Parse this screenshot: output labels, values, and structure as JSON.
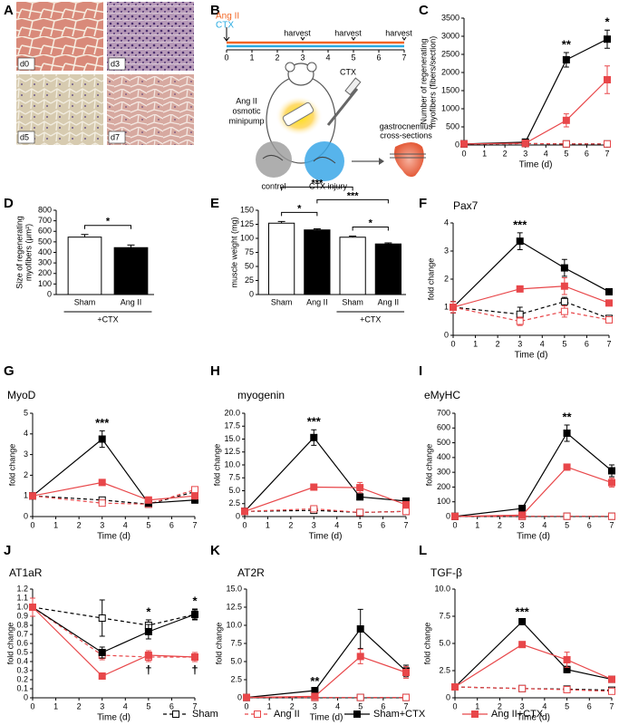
{
  "panel_a": {
    "label": "A",
    "images": [
      "d0",
      "d3",
      "d5",
      "d7"
    ]
  },
  "panel_b": {
    "label": "B",
    "lines": [
      {
        "name": "Ang II",
        "color": "#f26522"
      },
      {
        "name": "CTX",
        "color": "#29abe2"
      }
    ],
    "timeline": [
      0,
      1,
      2,
      3,
      4,
      5,
      6,
      7
    ],
    "harvest_days": [
      3,
      5,
      7
    ],
    "harvest_label": "harvest",
    "pump_label": [
      "Ang II",
      "osmotic",
      "minipump"
    ],
    "injection_label": "CTX",
    "muscle_label": [
      "gastrocnemius",
      "cross-sections"
    ],
    "control_label": "control",
    "injury_label": "CTX injury"
  },
  "series_styles": [
    {
      "name": "Sham",
      "color": "#000000",
      "dashed": true,
      "filled": false
    },
    {
      "name": "Ang II",
      "color": "#e8474a",
      "dashed": true,
      "filled": false
    },
    {
      "name": "Sham+CTX",
      "color": "#000000",
      "dashed": false,
      "filled": true
    },
    {
      "name": "Ang II+CTX",
      "color": "#e8474a",
      "dashed": false,
      "filled": true
    }
  ],
  "chart_data": [
    {
      "type": "line",
      "panel": "C",
      "ylabel": [
        "Number of regenerating",
        "myofibers (fibers/section)"
      ],
      "xlabel": "Time (d)",
      "x": [
        0,
        3,
        5,
        7
      ],
      "xlim": [
        0,
        7
      ],
      "xticks": [
        0,
        1,
        2,
        3,
        4,
        5,
        6,
        7
      ],
      "ylim": [
        0,
        3500
      ],
      "yticks": [
        0,
        500,
        1000,
        1500,
        2000,
        2500,
        3000,
        3500
      ],
      "series": [
        {
          "values": [
            30,
            40,
            30,
            30
          ],
          "errors": [
            0,
            10,
            10,
            10
          ]
        },
        {
          "values": [
            30,
            40,
            30,
            30
          ],
          "errors": [
            0,
            10,
            10,
            10
          ]
        },
        {
          "values": [
            30,
            80,
            2350,
            2920
          ],
          "errors": [
            0,
            20,
            200,
            250
          ]
        },
        {
          "values": [
            30,
            50,
            680,
            1800
          ],
          "errors": [
            0,
            20,
            180,
            380
          ]
        }
      ],
      "annotations": [
        {
          "text": "**",
          "x": 5,
          "side": "above"
        },
        {
          "text": "*",
          "x": 7,
          "side": "above"
        }
      ]
    },
    {
      "type": "bar",
      "panel": "D",
      "ylabel": [
        "Size of regenerating",
        "myofibers (μm²)"
      ],
      "categories": [
        "Sham",
        "Ang II"
      ],
      "values": [
        545,
        445
      ],
      "errors": [
        25,
        25
      ],
      "bar_colors": [
        "#ffffff",
        "#000000"
      ],
      "ylim": [
        0,
        800
      ],
      "yticks": [
        0,
        100,
        200,
        300,
        400,
        500,
        600,
        700,
        800
      ],
      "group": {
        "label": "+CTX",
        "from": 0,
        "to": 1
      },
      "comparisons": [
        {
          "a": 0,
          "b": 1,
          "text": "*"
        }
      ]
    },
    {
      "type": "bar",
      "panel": "E",
      "ylabel": [
        "muscle weight (mg)"
      ],
      "categories": [
        "Sham",
        "Ang II",
        "Sham",
        "Ang II"
      ],
      "values": [
        127,
        115,
        102,
        90
      ],
      "errors": [
        3,
        2,
        2,
        2
      ],
      "bar_colors": [
        "#ffffff",
        "#000000",
        "#ffffff",
        "#000000"
      ],
      "ylim": [
        0,
        150
      ],
      "yticks": [
        0,
        25,
        50,
        75,
        100,
        125,
        150
      ],
      "group": {
        "label": "+CTX",
        "from": 2,
        "to": 3
      },
      "comparisons": [
        {
          "a": 0,
          "b": 1,
          "text": "*"
        },
        {
          "a": 2,
          "b": 3,
          "text": "*"
        },
        {
          "a": 1,
          "b": 3,
          "text": "***"
        },
        {
          "a": 0,
          "b": 2,
          "text": "***"
        }
      ]
    },
    {
      "type": "line",
      "panel": "F",
      "title": "Pax7",
      "ylabel": [
        "fold change"
      ],
      "xlabel": "Time (d)",
      "x": [
        0,
        3,
        5,
        7
      ],
      "xlim": [
        0,
        7
      ],
      "xticks": [
        0,
        1,
        2,
        3,
        4,
        5,
        6,
        7
      ],
      "ylim": [
        0,
        4
      ],
      "yticks": [
        0,
        1,
        2,
        3,
        4
      ],
      "series": [
        {
          "values": [
            1,
            0.75,
            1.2,
            0.6
          ],
          "errors": [
            0.2,
            0.25,
            0.15,
            0.1
          ]
        },
        {
          "values": [
            1,
            0.5,
            0.85,
            0.55
          ],
          "errors": [
            0.2,
            0.15,
            0.2,
            0.1
          ]
        },
        {
          "values": [
            1,
            3.35,
            2.4,
            1.55
          ],
          "errors": [
            0.2,
            0.3,
            0.3,
            0.1
          ]
        },
        {
          "values": [
            1,
            1.65,
            1.75,
            1.15
          ],
          "errors": [
            0.2,
            0.1,
            0.3,
            0.05
          ]
        }
      ],
      "annotations": [
        {
          "text": "***",
          "x": 3,
          "side": "above"
        }
      ]
    },
    {
      "type": "line",
      "panel": "G",
      "title": "MyoD",
      "ylabel": [
        "fold change"
      ],
      "xlabel": "Time (d)",
      "x": [
        0,
        3,
        5,
        7
      ],
      "xlim": [
        0,
        7
      ],
      "xticks": [
        0,
        1,
        2,
        3,
        4,
        5,
        6,
        7
      ],
      "ylim": [
        0,
        5
      ],
      "yticks": [
        0,
        1,
        2,
        3,
        4,
        5
      ],
      "series": [
        {
          "values": [
            1,
            0.8,
            0.6,
            1.2
          ],
          "errors": [
            0.05,
            0.1,
            0.1,
            0.15
          ]
        },
        {
          "values": [
            1,
            0.65,
            0.6,
            1.3
          ],
          "errors": [
            0.05,
            0.1,
            0.1,
            0.15
          ]
        },
        {
          "values": [
            1,
            3.75,
            0.65,
            0.8
          ],
          "errors": [
            0.05,
            0.4,
            0.1,
            0.15
          ]
        },
        {
          "values": [
            1,
            1.65,
            0.8,
            1.0
          ],
          "errors": [
            0.05,
            0.1,
            0.15,
            0.15
          ]
        }
      ],
      "annotations": [
        {
          "text": "***",
          "x": 3,
          "side": "above"
        }
      ]
    },
    {
      "type": "line",
      "panel": "H",
      "title": "myogenin",
      "ylabel": [
        "fold change"
      ],
      "xlabel": "Time (d)",
      "x": [
        0,
        3,
        5,
        7
      ],
      "xlim": [
        0,
        7
      ],
      "xticks": [
        0,
        1,
        2,
        3,
        4,
        5,
        6,
        7
      ],
      "ylim": [
        0,
        20
      ],
      "yticks": [
        0,
        2.5,
        {
          "value": 5,
          "label": "5.0"
        },
        7.5,
        {
          "value": 10,
          "label": "10.0"
        },
        12.5,
        {
          "value": 15,
          "label": "15.0"
        },
        17.5,
        {
          "value": 20,
          "label": "20.0"
        }
      ],
      "series": [
        {
          "values": [
            1,
            1.2,
            0.8,
            1.0
          ],
          "errors": [
            0.1,
            0.3,
            0.2,
            0.2
          ]
        },
        {
          "values": [
            1,
            1.5,
            0.8,
            1.0
          ],
          "errors": [
            0.1,
            0.3,
            0.2,
            0.2
          ]
        },
        {
          "values": [
            1,
            15.3,
            3.8,
            3.0
          ],
          "errors": [
            0.1,
            1.5,
            0.5,
            0.4
          ]
        },
        {
          "values": [
            1,
            5.7,
            5.6,
            2.3
          ],
          "errors": [
            0.1,
            0.3,
            1.0,
            0.4
          ]
        }
      ],
      "annotations": [
        {
          "text": "***",
          "x": 3,
          "side": "above"
        }
      ]
    },
    {
      "type": "line",
      "panel": "I",
      "title": "eMyHC",
      "ylabel": [
        "fold change"
      ],
      "xlabel": "Time (d)",
      "x": [
        0,
        3,
        5,
        7
      ],
      "xlim": [
        0,
        7
      ],
      "xticks": [
        0,
        1,
        2,
        3,
        4,
        5,
        6,
        7
      ],
      "ylim": [
        0,
        700
      ],
      "yticks": [
        0,
        100,
        200,
        300,
        400,
        500,
        600,
        700
      ],
      "series": [
        {
          "values": [
            1,
            2,
            2,
            2
          ],
          "errors": [
            0,
            1,
            1,
            1
          ]
        },
        {
          "values": [
            1,
            2,
            2,
            2
          ],
          "errors": [
            0,
            1,
            1,
            1
          ]
        },
        {
          "values": [
            1,
            55,
            565,
            310
          ],
          "errors": [
            0,
            10,
            55,
            40
          ]
        },
        {
          "values": [
            1,
            10,
            335,
            230
          ],
          "errors": [
            0,
            5,
            15,
            30
          ]
        }
      ],
      "annotations": [
        {
          "text": "**",
          "x": 5,
          "side": "above"
        }
      ]
    },
    {
      "type": "line",
      "panel": "J",
      "title": "AT1aR",
      "ylabel": [
        "fold change"
      ],
      "xlabel": "Time (d)",
      "x": [
        0,
        3,
        5,
        7
      ],
      "xlim": [
        0,
        7
      ],
      "xticks": [
        0,
        1,
        2,
        3,
        4,
        5,
        6,
        7
      ],
      "ylim": [
        0,
        1.2
      ],
      "yticks": [
        0,
        0.1,
        0.2,
        0.3,
        0.4,
        0.5,
        0.6,
        0.7,
        0.8,
        0.9,
        {
          "value": 1,
          "label": "1.0"
        },
        1.1,
        1.2
      ],
      "series": [
        {
          "values": [
            1,
            0.88,
            0.8,
            0.92
          ],
          "errors": [
            0.1,
            0.2,
            0.06,
            0.05
          ]
        },
        {
          "values": [
            1,
            0.47,
            0.45,
            0.45
          ],
          "errors": [
            0.1,
            0.05,
            0.05,
            0.05
          ]
        },
        {
          "values": [
            1,
            0.5,
            0.73,
            0.92
          ],
          "errors": [
            0.1,
            0.06,
            0.08,
            0.06
          ]
        },
        {
          "values": [
            1,
            0.24,
            0.47,
            0.45
          ],
          "errors": [
            0.1,
            0.03,
            0.05,
            0.05
          ]
        }
      ],
      "annotations": [
        {
          "text": "*",
          "x": 5,
          "side": "above"
        },
        {
          "text": "*",
          "x": 7,
          "side": "above"
        },
        {
          "text": "†",
          "x": 5,
          "side": "below"
        },
        {
          "text": "†",
          "x": 7,
          "side": "below"
        }
      ]
    },
    {
      "type": "line",
      "panel": "K",
      "title": "AT2R",
      "ylabel": [
        "fold change"
      ],
      "xlabel": "Time (d)",
      "x": [
        0,
        3,
        5,
        7
      ],
      "xlim": [
        0,
        7
      ],
      "xticks": [
        0,
        1,
        2,
        3,
        4,
        5,
        6,
        7
      ],
      "ylim": [
        0,
        15
      ],
      "yticks": [
        0,
        2.5,
        {
          "value": 5,
          "label": "5.0"
        },
        7.5,
        {
          "value": 10,
          "label": "10.0"
        },
        12.5,
        {
          "value": 15,
          "label": "15.0"
        }
      ],
      "series": [
        {
          "values": [
            0.05,
            0.05,
            0.05,
            0.05
          ],
          "errors": [
            0,
            0,
            0,
            0
          ]
        },
        {
          "values": [
            0.05,
            0.05,
            0.05,
            0.05
          ],
          "errors": [
            0,
            0,
            0,
            0
          ]
        },
        {
          "values": [
            0.05,
            1.0,
            9.5,
            3.7
          ],
          "errors": [
            0,
            0.2,
            2.7,
            0.8
          ]
        },
        {
          "values": [
            0.05,
            0.2,
            5.7,
            3.5
          ],
          "errors": [
            0,
            0.1,
            1.0,
            0.8
          ]
        }
      ],
      "annotations": [
        {
          "text": "**",
          "x": 3,
          "side": "above"
        }
      ]
    },
    {
      "type": "line",
      "panel": "L",
      "title": "TGF-β",
      "ylabel": [
        "fold change"
      ],
      "xlabel": "Time (d)",
      "x": [
        0,
        3,
        5,
        7
      ],
      "xlim": [
        0,
        7
      ],
      "xticks": [
        0,
        1,
        2,
        3,
        4,
        5,
        6,
        7
      ],
      "ylim": [
        0,
        10
      ],
      "yticks": [
        0,
        2.5,
        {
          "value": 5,
          "label": "5.0"
        },
        7.5,
        {
          "value": 10,
          "label": "10.0"
        }
      ],
      "series": [
        {
          "values": [
            1,
            0.85,
            0.8,
            0.7
          ],
          "errors": [
            0.05,
            0.1,
            0.1,
            0.1
          ]
        },
        {
          "values": [
            1,
            0.85,
            0.75,
            0.6
          ],
          "errors": [
            0.05,
            0.1,
            0.1,
            0.1
          ]
        },
        {
          "values": [
            1,
            7.0,
            2.6,
            1.7
          ],
          "errors": [
            0.05,
            0.15,
            0.3,
            0.15
          ]
        },
        {
          "values": [
            1,
            4.9,
            3.5,
            1.7
          ],
          "errors": [
            0.05,
            0.2,
            0.7,
            0.15
          ]
        }
      ],
      "annotations": [
        {
          "text": "***",
          "x": 3,
          "side": "above"
        }
      ]
    }
  ]
}
